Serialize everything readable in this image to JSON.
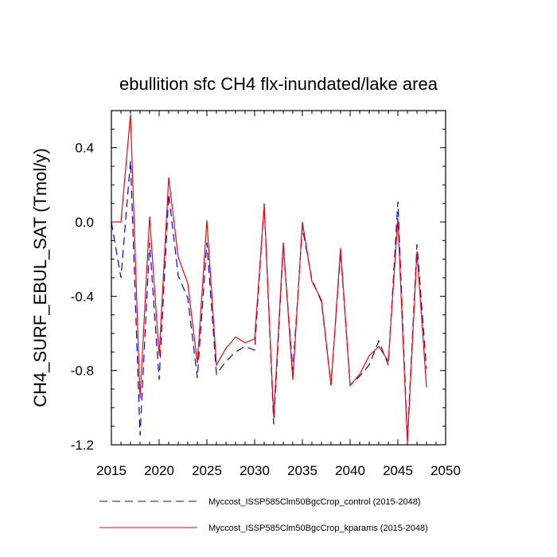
{
  "chart_data": {
    "type": "line",
    "title": "ebullition sfc CH4 flx-inundated/lake area",
    "xlabel": "",
    "ylabel": "CH4_SURF_EBUL_SAT  (Tmol/y)",
    "xlim": [
      2015,
      2050
    ],
    "ylim": [
      -1.2,
      0.6
    ],
    "xticks": [
      2015,
      2020,
      2025,
      2030,
      2035,
      2040,
      2045,
      2050
    ],
    "xtick_labels": [
      "2015",
      "2020",
      "2025",
      "2030",
      "2035",
      "2040",
      "2045",
      "2050"
    ],
    "yticks": [
      0.4,
      0.0,
      -0.4,
      -0.8,
      -1.2
    ],
    "ytick_labels": [
      "0.4",
      "0.0",
      "-0.4",
      "-0.8",
      "-1.2"
    ],
    "grid": false,
    "legend_position": "bottom",
    "x": [
      2015,
      2016,
      2017,
      2018,
      2019,
      2020,
      2021,
      2022,
      2023,
      2024,
      2025,
      2026,
      2027,
      2028,
      2029,
      2030,
      2031,
      2032,
      2033,
      2034,
      2035,
      2036,
      2037,
      2038,
      2039,
      2040,
      2041,
      2042,
      2043,
      2044,
      2045,
      2046,
      2047,
      2048
    ],
    "series": [
      {
        "name": "Myccost_ISSP585Clm50BgcCrop_control (2015-2048)",
        "color": "#0000ff",
        "style": "dashed",
        "values": [
          0.0,
          -0.3,
          0.33,
          -1.15,
          -0.11,
          -0.85,
          0.15,
          -0.29,
          -0.41,
          -0.84,
          -0.11,
          -0.82,
          -0.75,
          -0.7,
          -0.67,
          -0.69,
          0.1,
          -1.09,
          -0.13,
          -0.8,
          -0.03,
          -0.31,
          -0.43,
          -0.88,
          -0.16,
          -0.88,
          -0.83,
          -0.77,
          -0.64,
          -0.77,
          0.11,
          -1.17,
          -0.12,
          -0.79
        ]
      },
      {
        "name": "Myccost_ISSP585Clm50BgcCrop_kparams (2015-2048)",
        "color": "#ff0000",
        "style": "solid",
        "values": [
          0.0,
          0.0,
          0.58,
          -0.95,
          0.03,
          -0.72,
          0.24,
          -0.19,
          -0.33,
          -0.76,
          0.01,
          -0.77,
          -0.68,
          -0.62,
          -0.65,
          -0.63,
          0.09,
          -1.05,
          -0.11,
          -0.85,
          0.0,
          -0.32,
          -0.42,
          -0.88,
          -0.14,
          -0.88,
          -0.82,
          -0.72,
          -0.67,
          -0.75,
          0.02,
          -1.19,
          -0.16,
          -0.89
        ]
      }
    ]
  }
}
